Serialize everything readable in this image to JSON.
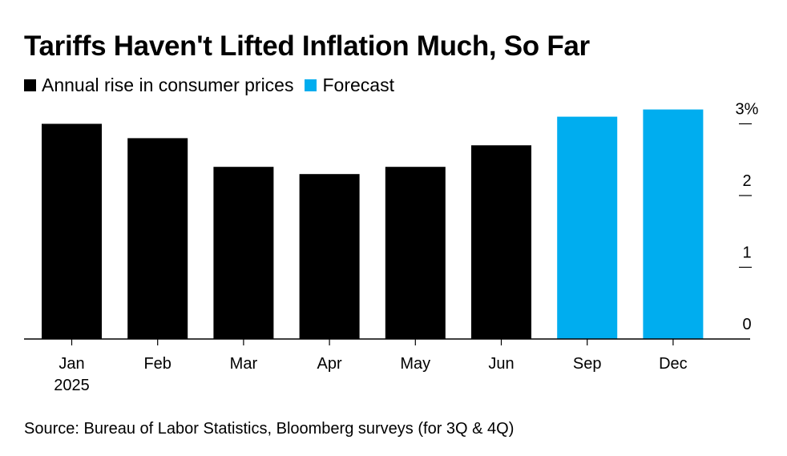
{
  "title": "Tariffs Haven't Lifted Inflation Much, So Far",
  "legend": [
    {
      "name": "Annual rise in consumer prices",
      "color": "#000000"
    },
    {
      "name": "Forecast",
      "color": "#00adef"
    }
  ],
  "source": "Source: Bureau of Labor Statistics, Bloomberg surveys (for 3Q & 4Q)",
  "chart_data": {
    "type": "bar",
    "categories": [
      "Jan",
      "Feb",
      "Mar",
      "Apr",
      "May",
      "Jun",
      "Sep",
      "Dec"
    ],
    "category_sublabels": [
      "2025",
      "",
      "",
      "",
      "",
      "",
      "",
      ""
    ],
    "series": [
      {
        "name": "Annual rise in consumer prices",
        "color": "#000000",
        "values": [
          3.0,
          2.8,
          2.4,
          2.3,
          2.4,
          2.7,
          null,
          null
        ]
      },
      {
        "name": "Forecast",
        "color": "#00adef",
        "values": [
          null,
          null,
          null,
          null,
          null,
          null,
          3.1,
          3.2
        ]
      }
    ],
    "y_ticks": [
      {
        "value": 0,
        "label": "0"
      },
      {
        "value": 1,
        "label": "1"
      },
      {
        "value": 2,
        "label": "2"
      },
      {
        "value": 3,
        "label": "3%"
      }
    ],
    "ylim": [
      0,
      3.2
    ],
    "yaxis_position": "right",
    "grid": false,
    "legend_position": "top-left"
  }
}
